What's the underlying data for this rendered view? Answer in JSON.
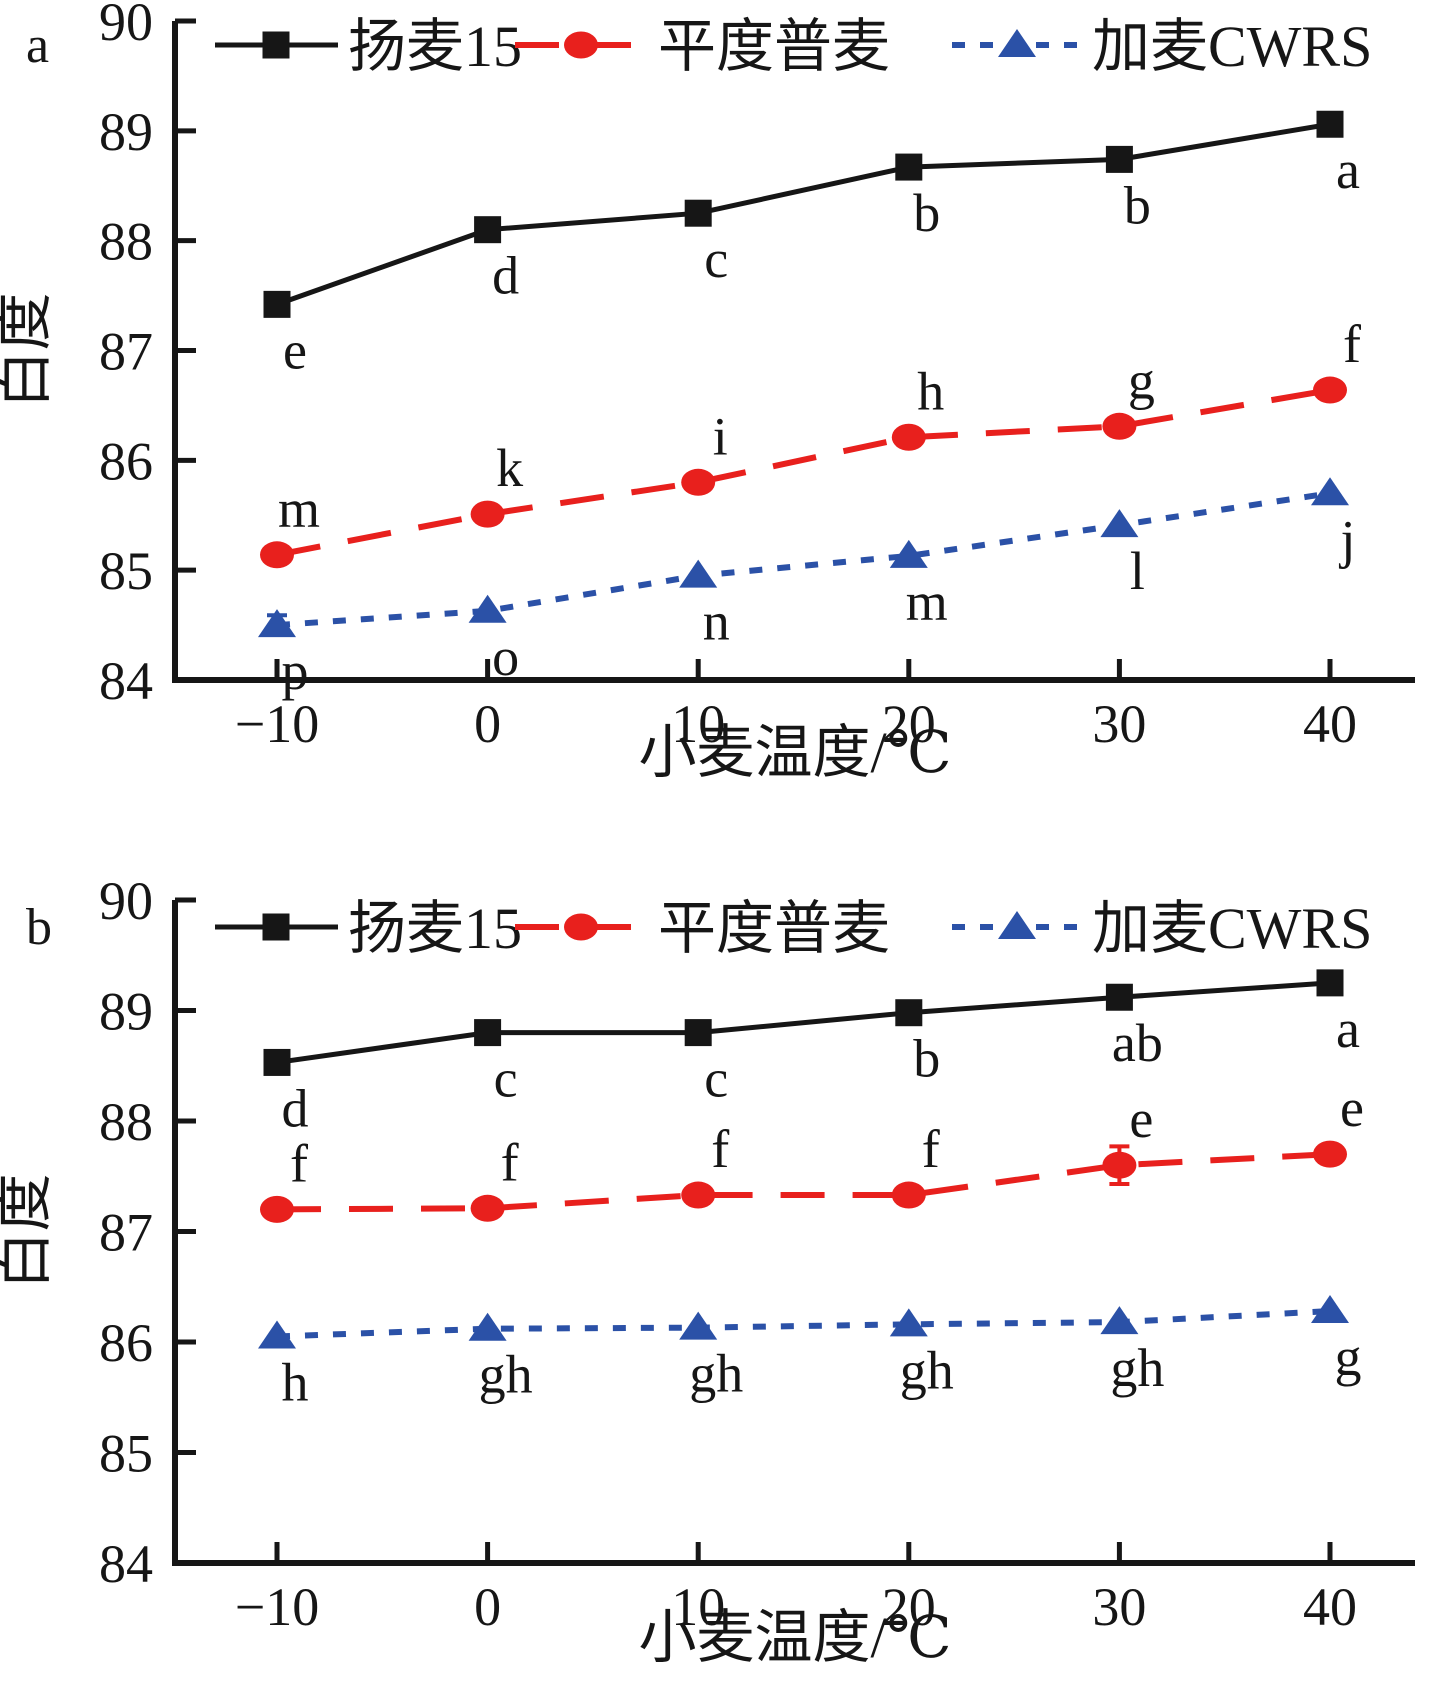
{
  "figure_title": "",
  "colors": {
    "black": "#161616",
    "red": "#e8201d",
    "blue": "#2b51a7",
    "background": "#ffffff"
  },
  "panel_letters": [
    "a",
    "b"
  ],
  "legend": {
    "entries": [
      "扬麦15",
      "平度普麦",
      "加麦CWRS"
    ],
    "position": "top-inside"
  },
  "axes": {
    "xlabel": "小麦温度/℃",
    "ylabel": "白度",
    "xticks": [
      -10,
      0,
      10,
      20,
      30,
      40
    ],
    "xtick_labels": [
      "−10",
      "0",
      "10",
      "20",
      "30",
      "40"
    ],
    "yticks": [
      84,
      85,
      86,
      87,
      88,
      89,
      90
    ],
    "ylim": [
      84,
      90
    ],
    "grid": false
  },
  "chart_data": [
    {
      "panel": "a",
      "type": "line",
      "x": [
        -10,
        0,
        10,
        20,
        30,
        40
      ],
      "xlabel": "小麦温度/℃",
      "ylabel": "白度",
      "ylim": [
        84,
        90
      ],
      "series": [
        {
          "key": "yangmai15",
          "name": "扬麦15",
          "color": "black",
          "marker": "square",
          "linestyle": "solid",
          "values": [
            87.42,
            88.1,
            88.25,
            88.67,
            88.74,
            89.06
          ],
          "point_labels": [
            "e",
            "d",
            "c",
            "b",
            "b",
            "a"
          ],
          "label_side": "below",
          "errors": [
            0,
            0,
            0,
            0,
            0,
            0
          ]
        },
        {
          "key": "pingdu-pumai",
          "name": "平度普麦",
          "color": "red",
          "marker": "circle",
          "linestyle": "dashed",
          "values": [
            85.14,
            85.51,
            85.8,
            86.21,
            86.31,
            86.64
          ],
          "point_labels": [
            "m",
            "k",
            "i",
            "h",
            "g",
            "f"
          ],
          "label_side": "above",
          "errors": [
            0,
            0,
            0,
            0,
            0,
            0
          ]
        },
        {
          "key": "jiamai-cwrs",
          "name": "加麦CWRS",
          "color": "blue",
          "marker": "triangle",
          "linestyle": "dotted",
          "values": [
            84.5,
            84.63,
            84.95,
            85.13,
            85.41,
            85.7
          ],
          "point_labels": [
            "p",
            "o",
            "n",
            "m",
            "l",
            "j"
          ],
          "label_side": "below",
          "errors": [
            0.09,
            0,
            0,
            0,
            0,
            0
          ]
        }
      ]
    },
    {
      "panel": "b",
      "type": "line",
      "x": [
        -10,
        0,
        10,
        20,
        30,
        40
      ],
      "xlabel": "小麦温度/℃",
      "ylabel": "白度",
      "ylim": [
        84,
        90
      ],
      "series": [
        {
          "key": "yangmai15",
          "name": "扬麦15",
          "color": "black",
          "marker": "square",
          "linestyle": "solid",
          "values": [
            88.53,
            88.8,
            88.8,
            88.98,
            89.12,
            89.25
          ],
          "point_labels": [
            "d",
            "c",
            "c",
            "b",
            "ab",
            "a"
          ],
          "label_side": "below",
          "errors": [
            0,
            0,
            0.08,
            0,
            0,
            0
          ]
        },
        {
          "key": "pingdu-pumai",
          "name": "平度普麦",
          "color": "red",
          "marker": "circle",
          "linestyle": "dashed",
          "values": [
            87.2,
            87.21,
            87.33,
            87.33,
            87.6,
            87.7
          ],
          "point_labels": [
            "f",
            "f",
            "f",
            "f",
            "e",
            "e"
          ],
          "label_side": "above",
          "errors": [
            0,
            0,
            0,
            0,
            0.17,
            0
          ]
        },
        {
          "key": "jiamai-cwrs",
          "name": "加麦CWRS",
          "color": "blue",
          "marker": "triangle",
          "linestyle": "dotted",
          "values": [
            86.05,
            86.12,
            86.13,
            86.16,
            86.18,
            86.28
          ],
          "point_labels": [
            "h",
            "gh",
            "gh",
            "gh",
            "gh",
            "g"
          ],
          "label_side": "below",
          "errors": [
            0,
            0,
            0,
            0,
            0,
            0
          ]
        }
      ]
    }
  ]
}
